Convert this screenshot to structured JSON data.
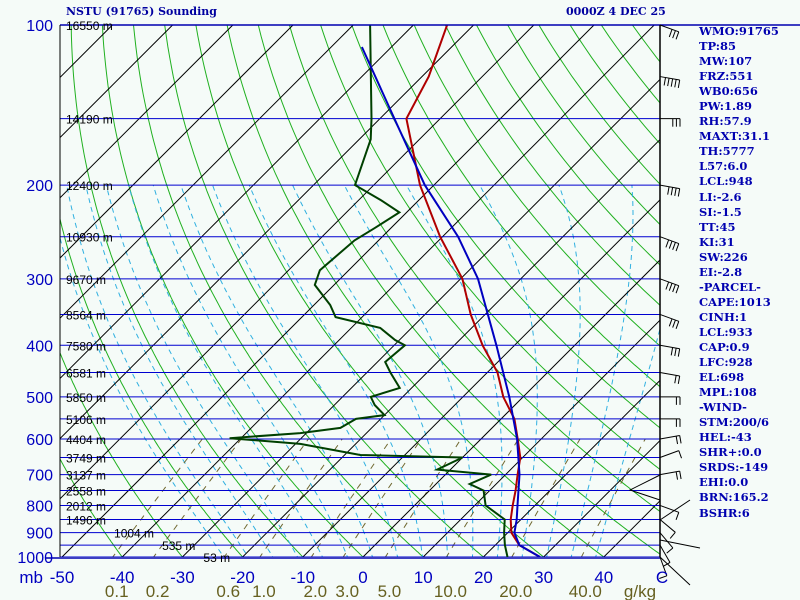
{
  "header": {
    "title": "NSTU (91765) Sounding",
    "time": "0000Z  4 DEC 25"
  },
  "indices": [
    "WMO:91765",
    "TP:85",
    "MW:107",
    "FRZ:551",
    "WB0:656",
    "PW:1.89",
    "RH:57.9",
    "MAXT:31.1",
    "TH:5777",
    "L57:6.0",
    "LCL:948",
    "LI:-2.6",
    "SI:-1.5",
    "TT:45",
    "KI:31",
    "SW:226",
    "EI:-2.8",
    "-PARCEL-",
    "CAPE:1013",
    "CINH:1",
    "LCL:933",
    "CAP:0.9",
    "LFC:928",
    "EL:698",
    "MPL:108",
    "-WIND-",
    "STM:200/6",
    "HEL:-43",
    "SHR+:0.0",
    "SRDS:-149",
    "EHI:0.0",
    "BRN:165.2",
    "BSHR:6"
  ],
  "chart_data": {
    "type": "line",
    "title": "NSTU (91765) Sounding",
    "subtitle": "0000Z  4 DEC 25",
    "xlabel": "C",
    "ylabel": "mb",
    "xlim": [
      -50,
      50
    ],
    "ylim": [
      1000,
      100
    ],
    "pressure_ticks": [
      100,
      200,
      300,
      400,
      500,
      600,
      700,
      800,
      900,
      1000
    ],
    "temp_ticks": [
      "-50",
      "-40",
      "-30",
      "-20",
      "-10",
      "0",
      "10",
      "20",
      "30",
      "40"
    ],
    "temp_tick_values": [
      -50,
      -40,
      -30,
      -20,
      -10,
      0,
      10,
      20,
      30,
      40
    ],
    "y_unit_label": "mb",
    "x_unit_label": "C",
    "mixing_ratio_labels": [
      "0.1",
      "0.2",
      "0.6",
      "1.0",
      "2.0",
      "3.0",
      "5.0",
      "10.0",
      "20.0",
      "40.0"
    ],
    "mixing_ratio_unit": "g/kg",
    "heights": [
      {
        "p": 100,
        "label": "16550 m"
      },
      {
        "p": 150,
        "label": "14190 m"
      },
      {
        "p": 200,
        "label": "12400 m"
      },
      {
        "p": 250,
        "label": "10930 m"
      },
      {
        "p": 300,
        "label": "9670 m"
      },
      {
        "p": 350,
        "label": "8564 m"
      },
      {
        "p": 400,
        "label": "7580 m"
      },
      {
        "p": 450,
        "label": "6581 m"
      },
      {
        "p": 500,
        "label": "5850 m"
      },
      {
        "p": 550,
        "label": "5106 m"
      },
      {
        "p": 600,
        "label": "4404 m"
      },
      {
        "p": 650,
        "label": "3749 m"
      },
      {
        "p": 700,
        "label": "3137 m"
      },
      {
        "p": 750,
        "label": "2558 m"
      },
      {
        "p": 800,
        "label": "2012 m"
      },
      {
        "p": 850,
        "label": "1496 m"
      },
      {
        "p": 900,
        "label": "1004 m"
      },
      {
        "p": 950,
        "label": "535 m"
      },
      {
        "p": 1000,
        "label": "53 m"
      }
    ],
    "series": [
      {
        "name": "temperature",
        "color": "#b00000",
        "points": [
          [
            1000,
            29.4
          ],
          [
            950,
            24
          ],
          [
            900,
            20.6
          ],
          [
            850,
            18.3
          ],
          [
            800,
            16.3
          ],
          [
            750,
            14.3
          ],
          [
            700,
            12
          ],
          [
            650,
            9.6
          ],
          [
            600,
            6.1
          ],
          [
            550,
            2.2
          ],
          [
            500,
            -3.3
          ],
          [
            450,
            -8.3
          ],
          [
            400,
            -15.3
          ],
          [
            350,
            -22.4
          ],
          [
            300,
            -29.7
          ],
          [
            250,
            -40.4
          ],
          [
            200,
            -52.3
          ],
          [
            150,
            -65.6
          ],
          [
            125,
            -68.9
          ],
          [
            100,
            -74.4
          ]
        ]
      },
      {
        "name": "dewpoint",
        "color": "#004000",
        "points": [
          [
            1000,
            24
          ],
          [
            950,
            21.6
          ],
          [
            900,
            19.4
          ],
          [
            850,
            17.3
          ],
          [
            800,
            11.8
          ],
          [
            750,
            9
          ],
          [
            729,
            5.6
          ],
          [
            700,
            7.6
          ],
          [
            685,
            -2.2
          ],
          [
            650,
            0
          ],
          [
            643,
            -17.4
          ],
          [
            613,
            -29.2
          ],
          [
            598,
            -41.9
          ],
          [
            585,
            -31
          ],
          [
            572,
            -25.2
          ],
          [
            550,
            -24.1
          ],
          [
            541,
            -20
          ],
          [
            518,
            -23.3
          ],
          [
            500,
            -25.3
          ],
          [
            481,
            -22
          ],
          [
            450,
            -26.1
          ],
          [
            430,
            -28.7
          ],
          [
            400,
            -28.2
          ],
          [
            391,
            -30.7
          ],
          [
            371,
            -35.2
          ],
          [
            354,
            -44.4
          ],
          [
            336,
            -47.3
          ],
          [
            308,
            -53.2
          ],
          [
            289,
            -54.8
          ],
          [
            254,
            -54
          ],
          [
            241,
            -52.7
          ],
          [
            225,
            -51.2
          ],
          [
            213,
            -56.5
          ],
          [
            200,
            -63.1
          ],
          [
            164,
            -68.1
          ],
          [
            150,
            -71.4
          ],
          [
            100,
            -87.2
          ]
        ]
      },
      {
        "name": "parcel",
        "color": "#0000c0",
        "points": [
          [
            1000,
            29.4
          ],
          [
            950,
            24
          ],
          [
            900,
            21.1
          ],
          [
            850,
            19.3
          ],
          [
            800,
            17.1
          ],
          [
            700,
            12.3
          ],
          [
            600,
            6
          ],
          [
            500,
            -2.3
          ],
          [
            400,
            -13
          ],
          [
            300,
            -27.1
          ],
          [
            250,
            -37.4
          ],
          [
            200,
            -51.5
          ],
          [
            150,
            -67.6
          ],
          [
            110,
            -84.9
          ]
        ]
      }
    ],
    "wind_barbs": [
      [
        1000,
        200,
        5
      ],
      [
        950,
        210,
        5
      ],
      [
        900,
        220,
        10
      ],
      [
        850,
        230,
        10
      ],
      [
        800,
        250,
        10
      ],
      [
        700,
        280,
        15
      ],
      [
        650,
        290,
        10
      ],
      [
        600,
        280,
        15
      ],
      [
        550,
        270,
        20
      ],
      [
        500,
        270,
        20
      ],
      [
        450,
        260,
        20
      ],
      [
        400,
        260,
        25
      ],
      [
        350,
        250,
        30
      ],
      [
        300,
        250,
        35
      ],
      [
        250,
        250,
        40
      ],
      [
        200,
        260,
        40
      ],
      [
        150,
        270,
        30
      ],
      [
        125,
        260,
        50
      ],
      [
        100,
        250,
        30
      ]
    ],
    "grid": true
  }
}
